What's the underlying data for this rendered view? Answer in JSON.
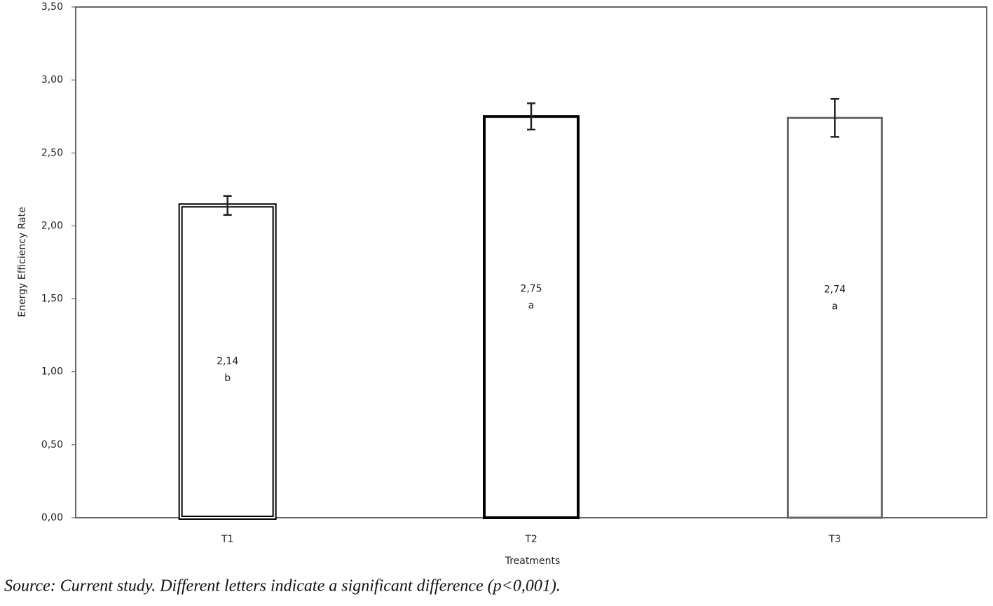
{
  "chart_data": {
    "type": "bar",
    "x_label": "Treatments",
    "y_label": "Energy Efficiency Rate",
    "caption": "Source: Current study. Different letters indicate a significant difference (p<0,001).",
    "categories": [
      "T1",
      "T2",
      "T3"
    ],
    "values": [
      2.14,
      2.75,
      2.74
    ],
    "value_labels": [
      "2,14",
      "2,75",
      "2,74"
    ],
    "letters": [
      "b",
      "a",
      "a"
    ],
    "errors": [
      0.065,
      0.09,
      0.13
    ],
    "ylim": [
      0,
      3.5
    ],
    "yticks": [
      {
        "value": 0,
        "label": "0,00"
      },
      {
        "value": 0.5,
        "label": "0,50"
      },
      {
        "value": 1,
        "label": "1,00"
      },
      {
        "value": 1.5,
        "label": "1,50"
      },
      {
        "value": 2,
        "label": "2,00"
      },
      {
        "value": 2.5,
        "label": "2,50"
      },
      {
        "value": 3,
        "label": "3,00"
      },
      {
        "value": 3.5,
        "label": "3,50"
      }
    ]
  }
}
